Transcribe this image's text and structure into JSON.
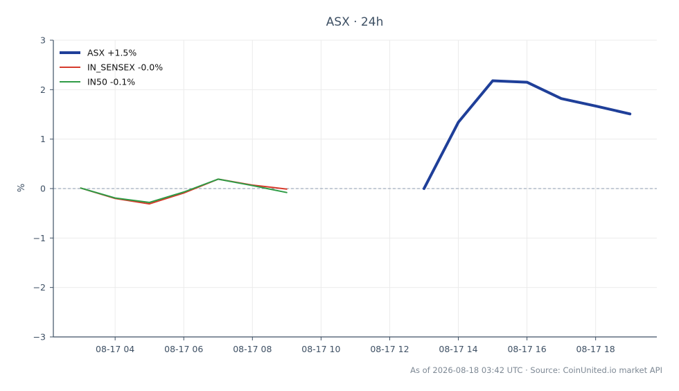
{
  "chart_data": {
    "type": "line",
    "title": "ASX · 24h",
    "ylabel": "%",
    "ylim": [
      -3,
      3
    ],
    "yticks": [
      3,
      2,
      1,
      0,
      -1,
      -2,
      -3
    ],
    "ytick_labels": [
      "3",
      "2",
      "1",
      "0",
      "−1",
      "−2",
      "−3"
    ],
    "xlim": [
      "2026-08-17T02:12",
      "2026-08-17T19:47"
    ],
    "xticks": [
      "2026-08-17T04:00",
      "2026-08-17T06:00",
      "2026-08-17T08:00",
      "2026-08-17T10:00",
      "2026-08-17T12:00",
      "2026-08-17T14:00",
      "2026-08-17T16:00",
      "2026-08-17T18:00"
    ],
    "xtick_labels": [
      "08-17 04",
      "08-17 06",
      "08-17 08",
      "08-17 10",
      "08-17 12",
      "08-17 14",
      "08-17 16",
      "08-17 18"
    ],
    "grid": true,
    "legend_position": "top-left",
    "reference_line": 0,
    "series": [
      {
        "name": "ASX +1.5%",
        "color": "#1f3f99",
        "x": [
          "2026-08-17T13:00",
          "2026-08-17T14:00",
          "2026-08-17T15:00",
          "2026-08-17T16:00",
          "2026-08-17T17:00",
          "2026-08-17T18:00",
          "2026-08-17T19:00"
        ],
        "y": [
          0.0,
          1.34,
          2.18,
          2.15,
          1.82,
          1.67,
          1.51
        ]
      },
      {
        "name": "IN_SENSEX -0.0%",
        "color": "#d63a2b",
        "x": [
          "2026-08-17T03:00",
          "2026-08-17T04:00",
          "2026-08-17T05:00",
          "2026-08-17T06:00",
          "2026-08-17T07:00",
          "2026-08-17T08:00",
          "2026-08-17T09:00"
        ],
        "y": [
          0.01,
          -0.2,
          -0.31,
          -0.09,
          0.19,
          0.07,
          -0.01
        ]
      },
      {
        "name": "IN50 -0.1%",
        "color": "#2e9b45",
        "x": [
          "2026-08-17T03:00",
          "2026-08-17T04:00",
          "2026-08-17T05:00",
          "2026-08-17T06:00",
          "2026-08-17T07:00",
          "2026-08-17T08:00",
          "2026-08-17T09:00"
        ],
        "y": [
          0.01,
          -0.19,
          -0.28,
          -0.07,
          0.19,
          0.06,
          -0.08
        ]
      }
    ]
  },
  "footer": "As of 2026-08-18 03:42 UTC · Source: CoinUnited.io market API"
}
